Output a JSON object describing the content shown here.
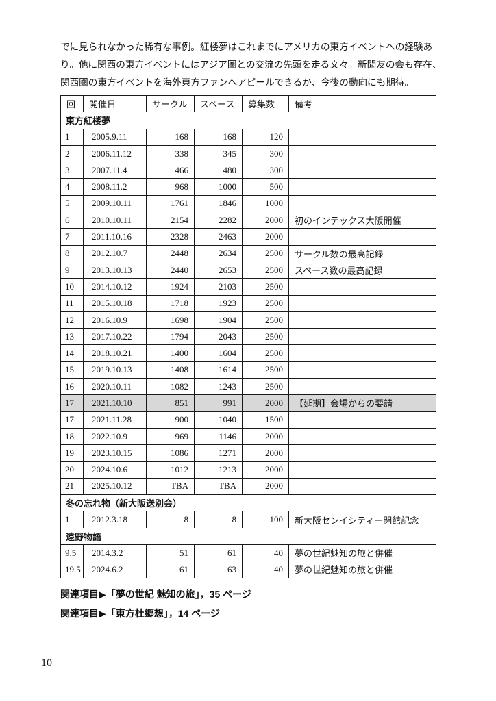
{
  "intro": {
    "lines": [
      "でに見られなかった稀有な事例。紅楼夢はこれまでにアメリカの東方イベントへの経験あ",
      "り。他に関西の東方イベントにはアジア圏との交流の先頭を走る文々。新聞友の会も存在、",
      "関西圏の東方イベントを海外東方ファンへアピールできるか、今後の動向にも期待。"
    ]
  },
  "table": {
    "headers": [
      "回",
      "開催日",
      "サークル",
      "スペース",
      "募集数",
      "備考"
    ],
    "highlight_color": "#d8d8d8",
    "sections": [
      {
        "title": "東方紅楼夢",
        "rows": [
          {
            "no": "1",
            "date": "2005.9.11",
            "circles": "168",
            "spaces": "168",
            "recruit": "120",
            "note": ""
          },
          {
            "no": "2",
            "date": "2006.11.12",
            "circles": "338",
            "spaces": "345",
            "recruit": "300",
            "note": ""
          },
          {
            "no": "3",
            "date": "2007.11.4",
            "circles": "466",
            "spaces": "480",
            "recruit": "300",
            "note": ""
          },
          {
            "no": "4",
            "date": "2008.11.2",
            "circles": "968",
            "spaces": "1000",
            "recruit": "500",
            "note": ""
          },
          {
            "no": "5",
            "date": "2009.10.11",
            "circles": "1761",
            "spaces": "1846",
            "recruit": "1000",
            "note": ""
          },
          {
            "no": "6",
            "date": "2010.10.11",
            "circles": "2154",
            "spaces": "2282",
            "recruit": "2000",
            "note": "初のインテックス大阪開催"
          },
          {
            "no": "7",
            "date": "2011.10.16",
            "circles": "2328",
            "spaces": "2463",
            "recruit": "2000",
            "note": ""
          },
          {
            "no": "8",
            "date": "2012.10.7",
            "circles": "2448",
            "spaces": "2634",
            "recruit": "2500",
            "note": "サークル数の最高記録"
          },
          {
            "no": "9",
            "date": "2013.10.13",
            "circles": "2440",
            "spaces": "2653",
            "recruit": "2500",
            "note": "スペース数の最高記録"
          },
          {
            "no": "10",
            "date": "2014.10.12",
            "circles": "1924",
            "spaces": "2103",
            "recruit": "2500",
            "note": ""
          },
          {
            "no": "11",
            "date": "2015.10.18",
            "circles": "1718",
            "spaces": "1923",
            "recruit": "2500",
            "note": ""
          },
          {
            "no": "12",
            "date": "2016.10.9",
            "circles": "1698",
            "spaces": "1904",
            "recruit": "2500",
            "note": ""
          },
          {
            "no": "13",
            "date": "2017.10.22",
            "circles": "1794",
            "spaces": "2043",
            "recruit": "2500",
            "note": ""
          },
          {
            "no": "14",
            "date": "2018.10.21",
            "circles": "1400",
            "spaces": "1604",
            "recruit": "2500",
            "note": ""
          },
          {
            "no": "15",
            "date": "2019.10.13",
            "circles": "1408",
            "spaces": "1614",
            "recruit": "2500",
            "note": ""
          },
          {
            "no": "16",
            "date": "2020.10.11",
            "circles": "1082",
            "spaces": "1243",
            "recruit": "2500",
            "note": ""
          },
          {
            "no": "17",
            "date": "2021.10.10",
            "circles": "851",
            "spaces": "991",
            "recruit": "2000",
            "note": "【延期】会場からの要請",
            "highlight": true
          },
          {
            "no": "17",
            "date": "2021.11.28",
            "circles": "900",
            "spaces": "1040",
            "recruit": "1500",
            "note": ""
          },
          {
            "no": "18",
            "date": "2022.10.9",
            "circles": "969",
            "spaces": "1146",
            "recruit": "2000",
            "note": ""
          },
          {
            "no": "19",
            "date": "2023.10.15",
            "circles": "1086",
            "spaces": "1271",
            "recruit": "2000",
            "note": ""
          },
          {
            "no": "20",
            "date": "2024.10.6",
            "circles": "1012",
            "spaces": "1213",
            "recruit": "2000",
            "note": ""
          },
          {
            "no": "21",
            "date": "2025.10.12",
            "circles": "TBA",
            "spaces": "TBA",
            "recruit": "2000",
            "note": ""
          }
        ]
      },
      {
        "title": "冬の忘れ物（新大阪送別会）",
        "rows": [
          {
            "no": "1",
            "date": "2012.3.18",
            "circles": "8",
            "spaces": "8",
            "recruit": "100",
            "note": "新大阪センイシティー閉館記念"
          }
        ]
      },
      {
        "title": "遠野物語",
        "rows": [
          {
            "no": "9.5",
            "date": "2014.3.2",
            "circles": "51",
            "spaces": "61",
            "recruit": "40",
            "note": "夢の世紀魅知の旅と併催"
          },
          {
            "no": "19.5",
            "date": "2024.6.2",
            "circles": "61",
            "spaces": "63",
            "recruit": "40",
            "note": "夢の世紀魅知の旅と併催"
          }
        ]
      }
    ]
  },
  "footer": {
    "related_items": [
      "関連項目▶「夢の世紀 魅知の旅」，35 ページ",
      "関連項目▶「東方杜郷想」，14 ページ"
    ]
  },
  "page_number": "10"
}
